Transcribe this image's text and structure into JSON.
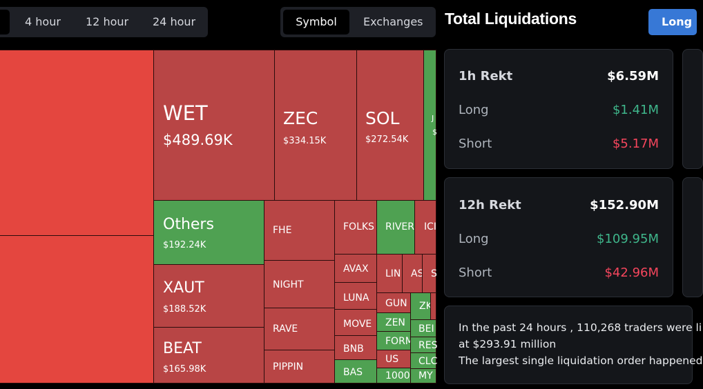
{
  "timeframes": [
    "4 hour",
    "12 hour",
    "24 hour"
  ],
  "group_by": [
    "Symbol",
    "Exchanges"
  ],
  "title": "Total Liquidations",
  "long_button": "Long",
  "colors": {
    "red_tile": "#b84545",
    "bright_red_tile": "#e4463f",
    "green_tile": "#4fa152",
    "accent_blue": "#3778d6",
    "long_green": "#3fb68b",
    "short_red": "#f6465d"
  },
  "treemap": [
    {
      "symbol": "WET",
      "value": "$489.69K",
      "change": "down"
    },
    {
      "symbol": "ZEC",
      "value": "$334.15K",
      "change": "down"
    },
    {
      "symbol": "SOL",
      "value": "$272.54K",
      "change": "down"
    },
    {
      "symbol": "J",
      "value": "$",
      "change": "up"
    },
    {
      "symbol": "Others",
      "value": "$192.24K",
      "change": "up"
    },
    {
      "symbol": "XAUT",
      "value": "$188.52K",
      "change": "down"
    },
    {
      "symbol": "BEAT",
      "value": "$165.98K",
      "change": "down"
    },
    {
      "symbol": "FHE",
      "change": "down"
    },
    {
      "symbol": "NIGHT",
      "change": "down"
    },
    {
      "symbol": "RAVE",
      "change": "down"
    },
    {
      "symbol": "PIPPIN",
      "change": "down"
    },
    {
      "symbol": "FOLKS",
      "change": "down"
    },
    {
      "symbol": "RIVER",
      "change": "up"
    },
    {
      "symbol": "ICI",
      "change": "down"
    },
    {
      "symbol": "AVAX",
      "change": "down"
    },
    {
      "symbol": "LUNA",
      "change": "down"
    },
    {
      "symbol": "MOVE",
      "change": "down"
    },
    {
      "symbol": "BNB",
      "change": "down"
    },
    {
      "symbol": "BAS",
      "change": "up"
    },
    {
      "symbol": "LIN",
      "change": "down"
    },
    {
      "symbol": "AS",
      "change": "down"
    },
    {
      "symbol": "S",
      "change": "down"
    },
    {
      "symbol": "GUN",
      "change": "down"
    },
    {
      "symbol": "ZK",
      "change": "up"
    },
    {
      "symbol": "ZEN",
      "change": "up"
    },
    {
      "symbol": "BEI",
      "change": "up"
    },
    {
      "symbol": "FORM",
      "change": "up"
    },
    {
      "symbol": "RES",
      "change": "up"
    },
    {
      "symbol": "US",
      "change": "down"
    },
    {
      "symbol": "CLC",
      "change": "up"
    },
    {
      "symbol": "1000I",
      "change": "up"
    },
    {
      "symbol": "MY",
      "change": "up"
    }
  ],
  "rekt_1h": {
    "title": "1h Rekt",
    "total": "$6.59M",
    "long_label": "Long",
    "long": "$1.41M",
    "short_label": "Short",
    "short": "$5.17M"
  },
  "rekt_12h": {
    "title": "12h Rekt",
    "total": "$152.90M",
    "long_label": "Long",
    "long": "$109.95M",
    "short_label": "Short",
    "short": "$42.96M"
  },
  "summary": {
    "line1": "In the past 24 hours , 110,268 traders were li",
    "line2": "at $293.91 million",
    "line3": "The largest single liquidation order happened"
  }
}
